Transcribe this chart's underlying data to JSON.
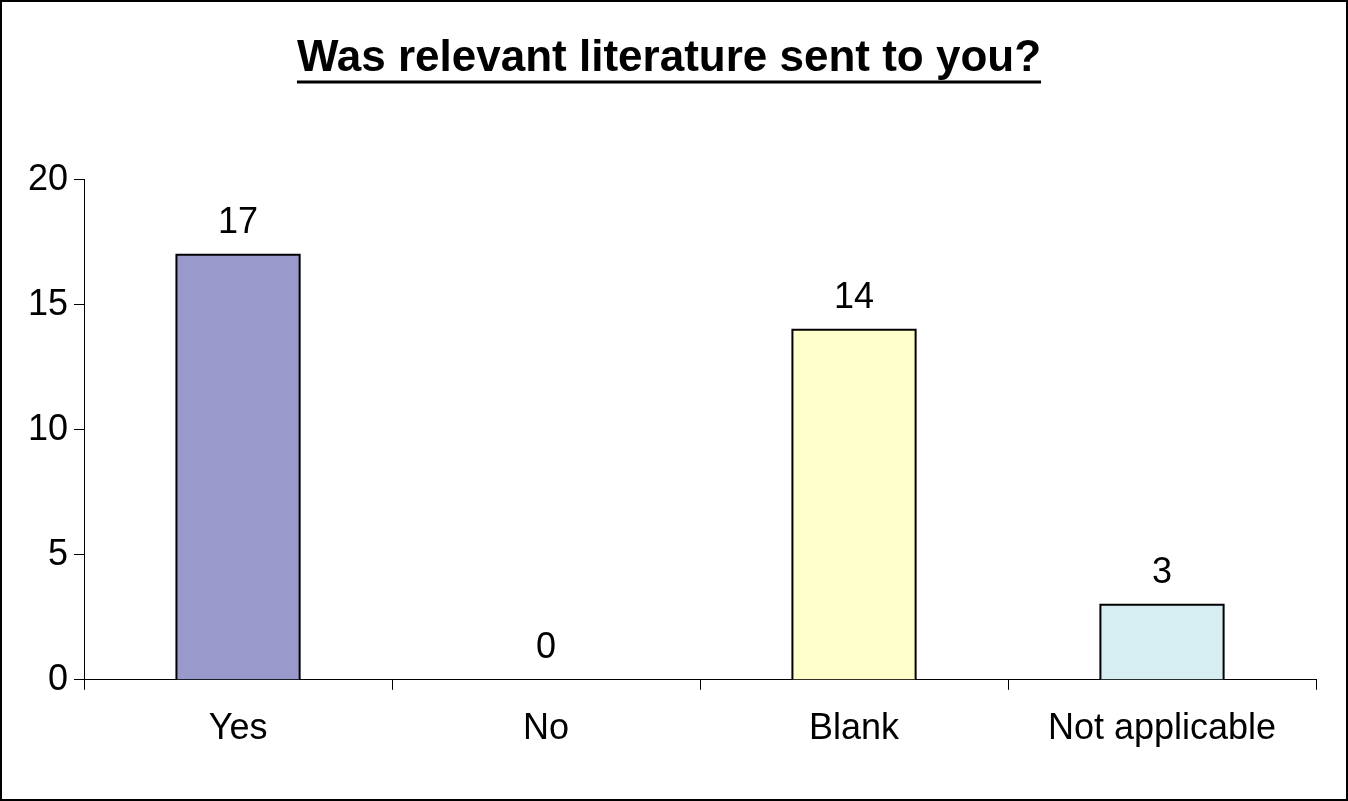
{
  "chart_data": {
    "type": "bar",
    "title": "Was relevant literature sent to you?",
    "categories": [
      "Yes",
      "No",
      "Blank",
      "Not applicable"
    ],
    "values": [
      17,
      0,
      14,
      3
    ],
    "colors": [
      "#9999cc",
      "#9999cc",
      "#ffffcc",
      "#d6eef2"
    ],
    "ylim": [
      0,
      20
    ],
    "yticks": [
      0,
      5,
      10,
      15,
      20
    ],
    "grid": false,
    "legend": false,
    "data_labels": true
  }
}
